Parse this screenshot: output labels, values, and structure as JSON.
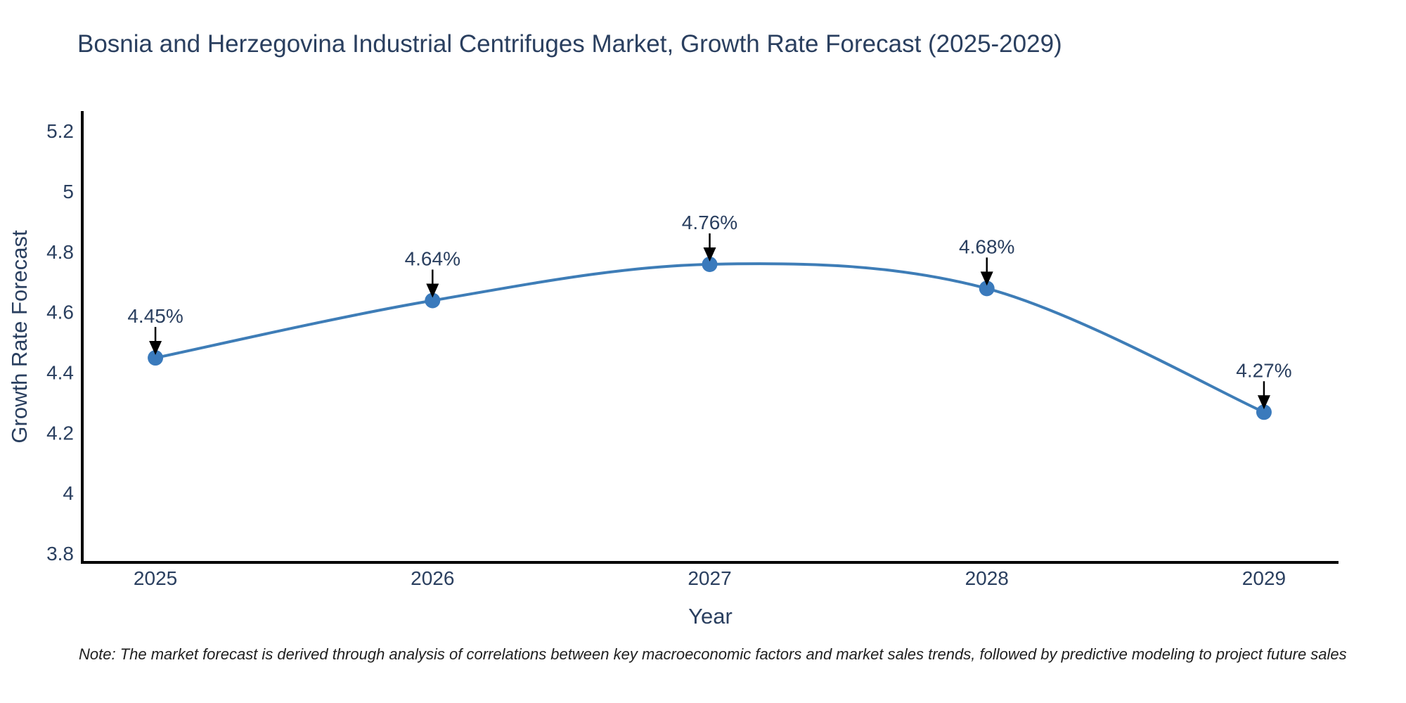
{
  "figure": {
    "title": "Bosnia and Herzegovina Industrial Centrifuges Market, Growth Rate Forecast (2025-2029)",
    "note": "Note: The market forecast is derived through analysis of correlations between key macroeconomic factors and market sales trends, followed by predictive modeling to project future sales"
  },
  "chart_data": {
    "type": "line",
    "title": "Bosnia and Herzegovina Industrial Centrifuges Market, Growth Rate Forecast (2025-2029)",
    "xlabel": "Year",
    "ylabel": "Growth Rate Forecast",
    "line_shape": "spline",
    "grid": false,
    "legend": false,
    "categories": [
      2025,
      2026,
      2027,
      2028,
      2029
    ],
    "values": [
      4.45,
      4.64,
      4.76,
      4.68,
      4.27
    ],
    "point_labels": [
      "4.45%",
      "4.64%",
      "4.76%",
      "4.68%",
      "4.27%"
    ],
    "xtick_labels": [
      "2025",
      "2026",
      "2027",
      "2028",
      "2029"
    ],
    "yticks": [
      3.8,
      4,
      4.2,
      4.4,
      4.6,
      4.8,
      5,
      5.2
    ],
    "ytick_labels": [
      "3.8",
      "4",
      "4.2",
      "4.4",
      "4.6",
      "4.8",
      "5",
      "5.2"
    ],
    "ylim": [
      3.772,
      5.268
    ],
    "xlim": [
      2024.736,
      2029.269
    ],
    "colors": {
      "line": "#3e7db7",
      "marker": "#3a7abc",
      "axis": "#000000",
      "text": "#2a3f5f",
      "annotation_text": "#2a3f5f",
      "annotation_arrow": "#000000",
      "note_text": "#1f1f1f",
      "background": "#ffffff"
    }
  }
}
